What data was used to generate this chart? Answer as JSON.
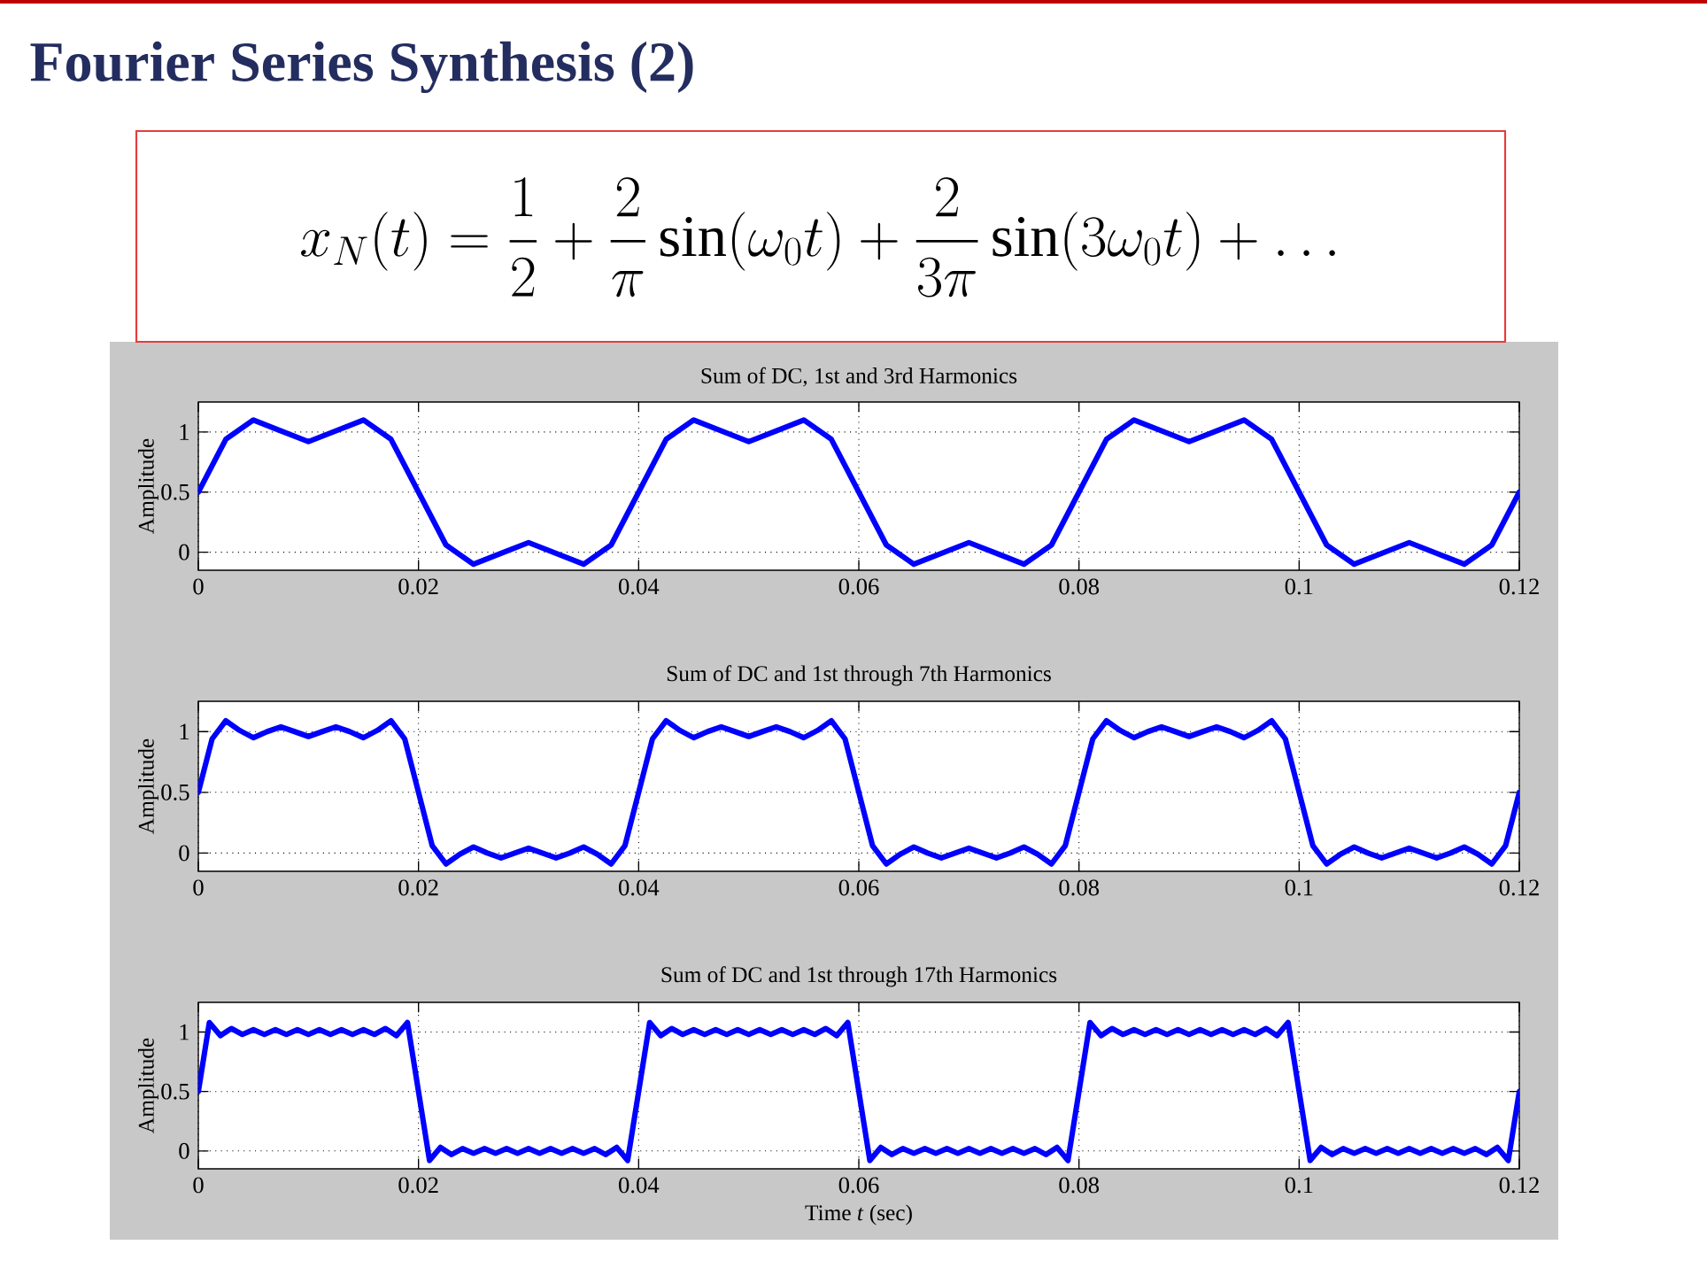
{
  "chart_data": [
    {
      "type": "other",
      "title": "Fourier Series Synthesis (2)",
      "subtitle": "x_N(t)=\\frac{1}{2}+\\frac{2}{\\pi}\\sin(\\omega_0 t)+\\frac{2}{3\\pi}\\sin(3\\omega_0 t)+\\ldots"
    },
    {
      "type": "line",
      "title": "Sum of DC, 1st and 3rd Harmonics",
      "ylabel": "Amplitude",
      "grid": true,
      "xlim": [
        0,
        0.12
      ],
      "ylim": [
        -0.15,
        1.25
      ],
      "xticks": [
        0,
        0.02,
        0.04,
        0.06,
        0.08,
        0.1,
        0.12
      ],
      "yticks": [
        0,
        0.5,
        1
      ],
      "x": [
        0,
        0.0025,
        0.005,
        0.0075,
        0.01,
        0.0125,
        0.015,
        0.0175,
        0.02,
        0.0225,
        0.025,
        0.0275,
        0.03,
        0.0325,
        0.035,
        0.0375,
        0.04,
        0.0425,
        0.045,
        0.0475,
        0.05,
        0.0525,
        0.055,
        0.0575,
        0.06,
        0.0625,
        0.065,
        0.0675,
        0.07,
        0.0725,
        0.075,
        0.0775,
        0.08,
        0.0825,
        0.085,
        0.0875,
        0.09,
        0.0925,
        0.095,
        0.0975,
        0.1,
        0.1025,
        0.105,
        0.1075,
        0.11,
        0.1125,
        0.115,
        0.1175,
        0.12
      ],
      "series": [
        {
          "color": "#0000ff",
          "values": [
            0.5,
            0.94,
            1.1,
            1.01,
            0.92,
            1.01,
            1.1,
            0.94,
            0.5,
            0.06,
            -0.1,
            -0.01,
            0.08,
            -0.01,
            -0.1,
            0.06,
            0.5,
            0.94,
            1.1,
            1.01,
            0.92,
            1.01,
            1.1,
            0.94,
            0.5,
            0.06,
            -0.1,
            -0.01,
            0.08,
            -0.01,
            -0.1,
            0.06,
            0.5,
            0.94,
            1.1,
            1.01,
            0.92,
            1.01,
            1.1,
            0.94,
            0.5,
            0.06,
            -0.1,
            -0.01,
            0.08,
            -0.01,
            -0.1,
            0.06,
            0.5
          ]
        }
      ]
    },
    {
      "type": "line",
      "title": "Sum of DC and 1st through 7th Harmonics",
      "ylabel": "Amplitude",
      "grid": true,
      "xlim": [
        0,
        0.12
      ],
      "ylim": [
        -0.15,
        1.25
      ],
      "xticks": [
        0,
        0.02,
        0.04,
        0.06,
        0.08,
        0.1,
        0.12
      ],
      "yticks": [
        0,
        0.5,
        1
      ],
      "x": [
        0,
        0.00125,
        0.0025,
        0.00375,
        0.005,
        0.00625,
        0.0075,
        0.00875,
        0.01,
        0.01125,
        0.0125,
        0.01375,
        0.015,
        0.01625,
        0.0175,
        0.01875,
        0.02,
        0.02125,
        0.0225,
        0.02375,
        0.025,
        0.02625,
        0.0275,
        0.02875,
        0.03,
        0.03125,
        0.0325,
        0.03375,
        0.035,
        0.03625,
        0.0375,
        0.03875,
        0.04,
        0.04125,
        0.0425,
        0.04375,
        0.045,
        0.04625,
        0.0475,
        0.04875,
        0.05,
        0.05125,
        0.0525,
        0.05375,
        0.055,
        0.05625,
        0.0575,
        0.05875,
        0.06,
        0.06125,
        0.0625,
        0.06375,
        0.065,
        0.06625,
        0.0675,
        0.06875,
        0.07,
        0.07125,
        0.0725,
        0.07375,
        0.075,
        0.07625,
        0.0775,
        0.07875,
        0.08,
        0.08125,
        0.0825,
        0.08375,
        0.085,
        0.08625,
        0.0875,
        0.08875,
        0.09,
        0.09125,
        0.0925,
        0.09375,
        0.095,
        0.09625,
        0.0975,
        0.09875,
        0.1,
        0.10125,
        0.1025,
        0.10375,
        0.105,
        0.10625,
        0.1075,
        0.10875,
        0.11,
        0.11125,
        0.1125,
        0.11375,
        0.115,
        0.11625,
        0.1175,
        0.11875,
        0.12
      ],
      "series": [
        {
          "color": "#0000ff",
          "values": [
            0.5,
            0.94,
            1.09,
            1.01,
            0.95,
            1,
            1.04,
            1,
            0.96,
            1,
            1.04,
            1,
            0.95,
            1.01,
            1.09,
            0.94,
            0.5,
            0.06,
            -0.09,
            -0.01,
            0.05,
            0,
            -0.04,
            0,
            0.04,
            0,
            -0.04,
            0,
            0.05,
            -0.01,
            -0.09,
            0.06,
            0.5,
            0.94,
            1.09,
            1.01,
            0.95,
            1,
            1.04,
            1,
            0.96,
            1,
            1.04,
            1,
            0.95,
            1.01,
            1.09,
            0.94,
            0.5,
            0.06,
            -0.09,
            -0.01,
            0.05,
            0,
            -0.04,
            0,
            0.04,
            0,
            -0.04,
            0,
            0.05,
            -0.01,
            -0.09,
            0.06,
            0.5,
            0.94,
            1.09,
            1.01,
            0.95,
            1,
            1.04,
            1,
            0.96,
            1,
            1.04,
            1,
            0.95,
            1.01,
            1.09,
            0.94,
            0.5,
            0.06,
            -0.09,
            -0.01,
            0.05,
            0,
            -0.04,
            0,
            0.04,
            0,
            -0.04,
            0,
            0.05,
            -0.01,
            -0.09,
            0.06,
            0.5
          ]
        }
      ]
    },
    {
      "type": "line",
      "title": "Sum of DC and 1st through 17th Harmonics",
      "ylabel": "Amplitude",
      "xlabel": "Time *t* (sec)",
      "grid": true,
      "xlim": [
        0,
        0.12
      ],
      "ylim": [
        -0.15,
        1.25
      ],
      "xticks": [
        0,
        0.02,
        0.04,
        0.06,
        0.08,
        0.1,
        0.12
      ],
      "yticks": [
        0,
        0.5,
        1
      ],
      "x": [
        0,
        0.001,
        0.002,
        0.003,
        0.004,
        0.005,
        0.006,
        0.007,
        0.008,
        0.009,
        0.01,
        0.011,
        0.012,
        0.013,
        0.014,
        0.015,
        0.016,
        0.017,
        0.018,
        0.019,
        0.02,
        0.021,
        0.022,
        0.023,
        0.024,
        0.025,
        0.026,
        0.027,
        0.028,
        0.029,
        0.03,
        0.031,
        0.032,
        0.033,
        0.034,
        0.035,
        0.036,
        0.037,
        0.038,
        0.039,
        0.04,
        0.041,
        0.042,
        0.043,
        0.044,
        0.045,
        0.046,
        0.047,
        0.048,
        0.049,
        0.05,
        0.051,
        0.052,
        0.053,
        0.054,
        0.055,
        0.056,
        0.057,
        0.058,
        0.059,
        0.06,
        0.061,
        0.062,
        0.063,
        0.064,
        0.065,
        0.066,
        0.067,
        0.068,
        0.069,
        0.07,
        0.071,
        0.072,
        0.073,
        0.074,
        0.075,
        0.076,
        0.077,
        0.078,
        0.079,
        0.08,
        0.081,
        0.082,
        0.083,
        0.084,
        0.085,
        0.086,
        0.087,
        0.088,
        0.089,
        0.09,
        0.091,
        0.092,
        0.093,
        0.094,
        0.095,
        0.096,
        0.097,
        0.098,
        0.099,
        0.1,
        0.101,
        0.102,
        0.103,
        0.104,
        0.105,
        0.106,
        0.107,
        0.108,
        0.109,
        0.11,
        0.111,
        0.112,
        0.113,
        0.114,
        0.115,
        0.116,
        0.117,
        0.118,
        0.119,
        0.12
      ],
      "series": [
        {
          "color": "#0000ff",
          "values": [
            0.5,
            1.08,
            0.97,
            1.03,
            0.98,
            1.02,
            0.98,
            1.02,
            0.98,
            1.02,
            0.98,
            1.02,
            0.98,
            1.02,
            0.98,
            1.02,
            0.98,
            1.03,
            0.97,
            1.08,
            0.5,
            -0.08,
            0.03,
            -0.03,
            0.02,
            -0.02,
            0.02,
            -0.02,
            0.02,
            -0.02,
            0.02,
            -0.02,
            0.02,
            -0.02,
            0.02,
            -0.02,
            0.02,
            -0.03,
            0.03,
            -0.08,
            0.5,
            1.08,
            0.97,
            1.03,
            0.98,
            1.02,
            0.98,
            1.02,
            0.98,
            1.02,
            0.98,
            1.02,
            0.98,
            1.02,
            0.98,
            1.02,
            0.98,
            1.03,
            0.97,
            1.08,
            0.5,
            -0.08,
            0.03,
            -0.03,
            0.02,
            -0.02,
            0.02,
            -0.02,
            0.02,
            -0.02,
            0.02,
            -0.02,
            0.02,
            -0.02,
            0.02,
            -0.02,
            0.02,
            -0.03,
            0.03,
            -0.08,
            0.5,
            1.08,
            0.97,
            1.03,
            0.98,
            1.02,
            0.98,
            1.02,
            0.98,
            1.02,
            0.98,
            1.02,
            0.98,
            1.02,
            0.98,
            1.02,
            0.98,
            1.03,
            0.97,
            1.08,
            0.5,
            -0.08,
            0.03,
            -0.03,
            0.02,
            -0.02,
            0.02,
            -0.02,
            0.02,
            -0.02,
            0.02,
            -0.02,
            0.02,
            -0.02,
            0.02,
            -0.02,
            0.02,
            -0.03,
            0.03,
            -0.08,
            0.5
          ]
        }
      ]
    }
  ]
}
